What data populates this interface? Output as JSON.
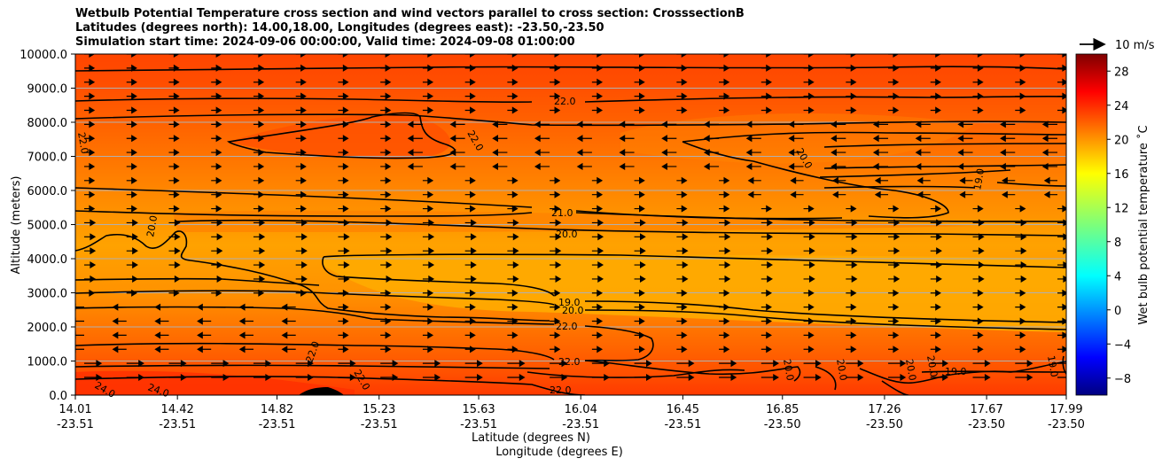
{
  "chart_data": {
    "type": "contour",
    "title_lines": [
      "Wetbulb Potential Temperature cross section and wind vectors parallel to cross section: CrosssectionB",
      "Latitudes (degrees north): 14.00,18.00, Longitudes (degrees east): -23.50,-23.50",
      "Simulation start time: 2024-09-06 00:00:00, Valid time: 2024-09-08 01:00:00"
    ],
    "xlabel": "Latitude (degrees N)",
    "xlabel2": "Longitude (degrees E)",
    "ylabel": "Altitude (meters)",
    "ylim": [
      0,
      10000
    ],
    "y_ticks": [
      "0.0",
      "1000.0",
      "2000.0",
      "3000.0",
      "4000.0",
      "5000.0",
      "6000.0",
      "7000.0",
      "8000.0",
      "9000.0",
      "10000.0"
    ],
    "x_ticks": [
      {
        "lat": "14.01",
        "lon": "-23.51"
      },
      {
        "lat": "14.42",
        "lon": "-23.51"
      },
      {
        "lat": "14.82",
        "lon": "-23.51"
      },
      {
        "lat": "15.23",
        "lon": "-23.51"
      },
      {
        "lat": "15.63",
        "lon": "-23.51"
      },
      {
        "lat": "16.04",
        "lon": "-23.51"
      },
      {
        "lat": "16.45",
        "lon": "-23.51"
      },
      {
        "lat": "16.85",
        "lon": "-23.50"
      },
      {
        "lat": "17.26",
        "lon": "-23.50"
      },
      {
        "lat": "17.67",
        "lon": "-23.50"
      },
      {
        "lat": "17.99",
        "lon": "-23.50"
      }
    ],
    "colorbar": {
      "label": "Wet bulb potential temperature ˚C",
      "range": [
        -10,
        30
      ],
      "ticks": [
        "−8",
        "−4",
        "0",
        "4",
        "8",
        "12",
        "16",
        "20",
        "24",
        "28"
      ]
    },
    "quiver_key": "10 m/s",
    "contour_labels": [
      "22.0",
      "21.0",
      "20.0",
      "19.0",
      "24.0"
    ],
    "grid": true
  }
}
